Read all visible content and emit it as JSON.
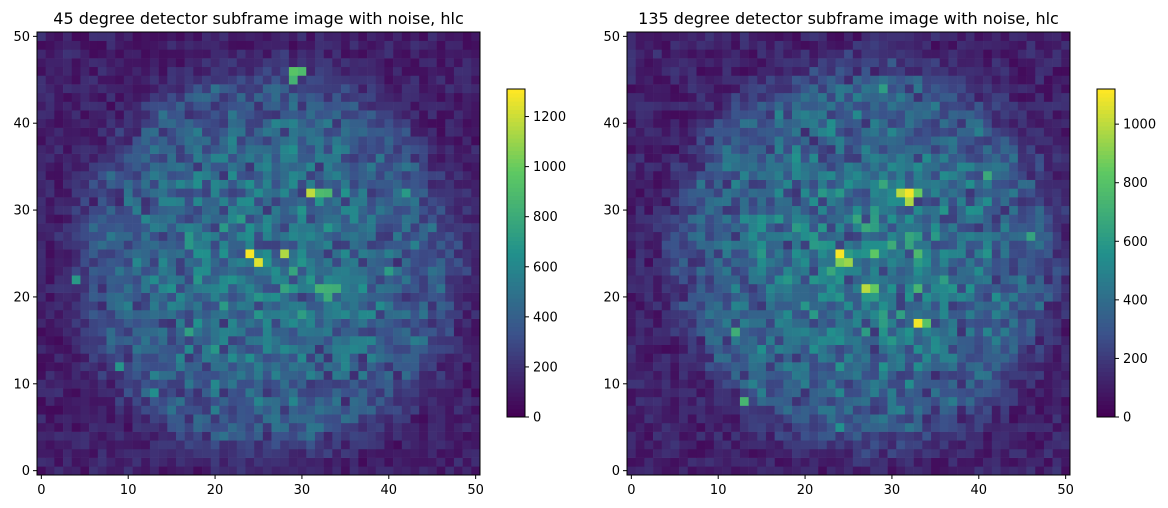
{
  "figure": {
    "colormap_colors": [
      "#440154",
      "#3b528b",
      "#21918c",
      "#5ec962",
      "#fde725"
    ]
  },
  "chart_data": [
    {
      "type": "heatmap",
      "title": "45 degree detector subframe image with noise, hlc",
      "xlabel": "",
      "ylabel": "",
      "grid_size": 51,
      "xlim": [
        -0.5,
        50.5
      ],
      "ylim": [
        -0.5,
        50.5
      ],
      "xticks": [
        0,
        10,
        20,
        30,
        40,
        50
      ],
      "yticks": [
        0,
        10,
        20,
        30,
        40,
        50
      ],
      "colorbar": {
        "min": 0,
        "max": 1310,
        "ticks": [
          0,
          200,
          400,
          600,
          800,
          1000,
          1200
        ]
      },
      "background_level": 120,
      "halo": {
        "center": [
          26,
          24
        ],
        "radius": 21,
        "level": 470
      },
      "hotspots": [
        {
          "x": 24,
          "y": 25,
          "value": 1300
        },
        {
          "x": 25,
          "y": 24,
          "value": 1250
        },
        {
          "x": 28,
          "y": 25,
          "value": 1150
        },
        {
          "x": 31,
          "y": 32,
          "value": 1180
        },
        {
          "x": 32,
          "y": 32,
          "value": 900
        },
        {
          "x": 33,
          "y": 32,
          "value": 880
        },
        {
          "x": 29,
          "y": 46,
          "value": 950
        },
        {
          "x": 30,
          "y": 46,
          "value": 900
        },
        {
          "x": 29,
          "y": 45,
          "value": 850
        },
        {
          "x": 32,
          "y": 21,
          "value": 850
        },
        {
          "x": 33,
          "y": 21,
          "value": 830
        },
        {
          "x": 34,
          "y": 21,
          "value": 820
        },
        {
          "x": 33,
          "y": 20,
          "value": 800
        },
        {
          "x": 28,
          "y": 21,
          "value": 760
        },
        {
          "x": 40,
          "y": 23,
          "value": 720
        },
        {
          "x": 42,
          "y": 32,
          "value": 700
        },
        {
          "x": 4,
          "y": 22,
          "value": 700
        },
        {
          "x": 17,
          "y": 16,
          "value": 740
        },
        {
          "x": 9,
          "y": 12,
          "value": 680
        },
        {
          "x": 13,
          "y": 9,
          "value": 640
        }
      ]
    },
    {
      "type": "heatmap",
      "title": "135 degree detector subframe image with noise, hlc",
      "xlabel": "",
      "ylabel": "",
      "grid_size": 51,
      "xlim": [
        -0.5,
        50.5
      ],
      "ylim": [
        -0.5,
        50.5
      ],
      "xticks": [
        0,
        10,
        20,
        30,
        40,
        50
      ],
      "yticks": [
        0,
        10,
        20,
        30,
        40,
        50
      ],
      "colorbar": {
        "min": 0,
        "max": 1120,
        "ticks": [
          0,
          200,
          400,
          600,
          800,
          1000
        ]
      },
      "background_level": 110,
      "halo": {
        "center": [
          27,
          25
        ],
        "radius": 21,
        "level": 420
      },
      "hotspots": [
        {
          "x": 24,
          "y": 25,
          "value": 1110
        },
        {
          "x": 25,
          "y": 24,
          "value": 950
        },
        {
          "x": 24,
          "y": 24,
          "value": 900
        },
        {
          "x": 32,
          "y": 32,
          "value": 1100
        },
        {
          "x": 31,
          "y": 32,
          "value": 1000
        },
        {
          "x": 32,
          "y": 31,
          "value": 980
        },
        {
          "x": 33,
          "y": 32,
          "value": 850
        },
        {
          "x": 33,
          "y": 17,
          "value": 1100
        },
        {
          "x": 34,
          "y": 17,
          "value": 800
        },
        {
          "x": 27,
          "y": 21,
          "value": 1000
        },
        {
          "x": 28,
          "y": 21,
          "value": 850
        },
        {
          "x": 28,
          "y": 25,
          "value": 830
        },
        {
          "x": 33,
          "y": 25,
          "value": 760
        },
        {
          "x": 33,
          "y": 21,
          "value": 740
        },
        {
          "x": 13,
          "y": 8,
          "value": 740
        },
        {
          "x": 12,
          "y": 16,
          "value": 700
        },
        {
          "x": 41,
          "y": 34,
          "value": 680
        },
        {
          "x": 46,
          "y": 27,
          "value": 650
        },
        {
          "x": 29,
          "y": 44,
          "value": 620
        },
        {
          "x": 24,
          "y": 5,
          "value": 560
        }
      ]
    }
  ]
}
